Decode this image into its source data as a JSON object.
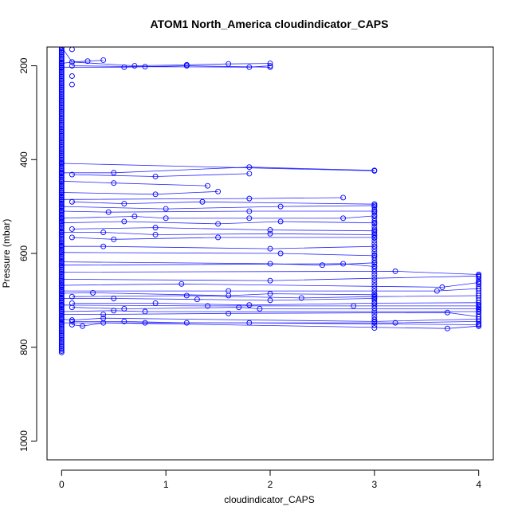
{
  "chart_data": {
    "type": "line",
    "title": "ATOM1 North_America cloudindicator_CAPS",
    "xlabel": "cloudindicator_CAPS",
    "ylabel": "Pressure (mbar)",
    "xlim": [
      -0.14,
      4.14
    ],
    "ylim": [
      1040,
      160
    ],
    "y_reversed": true,
    "xticks": [
      0,
      1,
      2,
      3,
      4
    ],
    "yticks": [
      200,
      400,
      600,
      800,
      1000
    ],
    "grid": false,
    "legend": "none",
    "series_color": "#0000ff",
    "series": [
      {
        "x": [
          0.0,
          0.1,
          0.7,
          1.2,
          1.6,
          2.0
        ],
        "y": [
          160,
          192,
          200,
          198,
          196,
          195
        ]
      },
      {
        "x": [
          0.0,
          0.1,
          0.25,
          0.4
        ],
        "y": [
          195,
          192,
          190,
          188
        ]
      },
      {
        "x": [
          0.1,
          0.8,
          1.8,
          2.0
        ],
        "y": [
          200,
          202,
          203,
          200
        ]
      },
      {
        "x": [
          0.0,
          0.6,
          1.2,
          2.0
        ],
        "y": [
          203,
          203,
          200,
          203
        ]
      },
      {
        "x": [
          0.0,
          3.0
        ],
        "y": [
          408,
          424
        ]
      },
      {
        "x": [
          0.0,
          0.5,
          1.8,
          3.0
        ],
        "y": [
          428,
          428,
          416,
          423
        ]
      },
      {
        "x": [
          0.1,
          0.9,
          1.8
        ],
        "y": [
          432,
          436,
          430
        ]
      },
      {
        "x": [
          0.0,
          0.5,
          1.4
        ],
        "y": [
          446,
          450,
          456
        ]
      },
      {
        "x": [
          0.0,
          0.9,
          1.5
        ],
        "y": [
          470,
          474,
          468
        ]
      },
      {
        "x": [
          0.0,
          1.8,
          2.7
        ],
        "y": [
          485,
          483,
          481
        ]
      },
      {
        "x": [
          0.1,
          0.6,
          1.35,
          3.0
        ],
        "y": [
          490,
          494,
          490,
          495
        ]
      },
      {
        "x": [
          0.0,
          1.0,
          2.1,
          3.0
        ],
        "y": [
          500,
          505,
          500,
          498
        ]
      },
      {
        "x": [
          0.0,
          0.45,
          1.8,
          3.0
        ],
        "y": [
          510,
          512,
          510,
          510
        ]
      },
      {
        "x": [
          0.0,
          0.7,
          1.0,
          1.8,
          2.7,
          3.0
        ],
        "y": [
          525,
          521,
          525,
          525,
          525,
          520
        ]
      },
      {
        "x": [
          0.0,
          0.6,
          1.5,
          2.1,
          3.0
        ],
        "y": [
          535,
          532,
          537,
          532,
          535
        ]
      },
      {
        "x": [
          0.1,
          0.9,
          2.0,
          3.0
        ],
        "y": [
          548,
          545,
          550,
          552
        ]
      },
      {
        "x": [
          0.0,
          0.4,
          0.9,
          2.0,
          3.0
        ],
        "y": [
          555,
          555,
          560,
          558,
          560
        ]
      },
      {
        "x": [
          0.1,
          0.5,
          1.5,
          3.0
        ],
        "y": [
          566,
          570,
          566,
          566
        ]
      },
      {
        "x": [
          0.0,
          0.4,
          2.0,
          3.0
        ],
        "y": [
          585,
          585,
          590,
          585
        ]
      },
      {
        "x": [
          0.0,
          2.1,
          3.0
        ],
        "y": [
          598,
          600,
          605
        ]
      },
      {
        "x": [
          0.0,
          2.0,
          2.5,
          3.0
        ],
        "y": [
          618,
          622,
          625,
          620
        ]
      },
      {
        "x": [
          0.0,
          2.7,
          3.0
        ],
        "y": [
          625,
          622,
          628
        ]
      },
      {
        "x": [
          0.0,
          3.2,
          4.0
        ],
        "y": [
          640,
          638,
          645
        ]
      },
      {
        "x": [
          0.0,
          2.0,
          4.0
        ],
        "y": [
          655,
          658,
          648
        ]
      },
      {
        "x": [
          0.0,
          1.15,
          3.65,
          4.0
        ],
        "y": [
          668,
          665,
          672,
          662
        ]
      },
      {
        "x": [
          0.0,
          1.6,
          3.6,
          4.0
        ],
        "y": [
          680,
          680,
          680,
          675
        ]
      },
      {
        "x": [
          0.0,
          0.3,
          1.6,
          2.0,
          3.0
        ],
        "y": [
          685,
          684,
          690,
          686,
          688
        ]
      },
      {
        "x": [
          0.1,
          1.2,
          2.3,
          3.0,
          4.0
        ],
        "y": [
          692,
          690,
          695,
          692,
          690
        ]
      },
      {
        "x": [
          0.0,
          0.5,
          1.3,
          2.0,
          3.0
        ],
        "y": [
          696,
          696,
          698,
          700,
          696
        ]
      },
      {
        "x": [
          0.1,
          0.9,
          1.8,
          3.0,
          4.0
        ],
        "y": [
          706,
          706,
          710,
          706,
          705
        ]
      },
      {
        "x": [
          0.0,
          1.4,
          2.8,
          4.0
        ],
        "y": [
          710,
          712,
          712,
          712
        ]
      },
      {
        "x": [
          0.1,
          0.6,
          1.7,
          1.9,
          4.0
        ],
        "y": [
          715,
          718,
          715,
          718,
          718
        ]
      },
      {
        "x": [
          0.0,
          0.5,
          0.8,
          4.0
        ],
        "y": [
          724,
          722,
          724,
          724
        ]
      },
      {
        "x": [
          0.0,
          0.4,
          1.6,
          3.7,
          4.0
        ],
        "y": [
          730,
          730,
          728,
          726,
          735
        ]
      },
      {
        "x": [
          0.0,
          0.1,
          0.4,
          3.0,
          4.0
        ],
        "y": [
          740,
          742,
          738,
          745,
          740
        ]
      },
      {
        "x": [
          0.1,
          0.6,
          1.2,
          3.2,
          4.0
        ],
        "y": [
          745,
          745,
          748,
          748,
          745
        ]
      },
      {
        "x": [
          0.0,
          0.8,
          1.8,
          4.0
        ],
        "y": [
          748,
          748,
          748,
          752
        ]
      },
      {
        "x": [
          0.1,
          0.2,
          0.4,
          3.7,
          4.0
        ],
        "y": [
          752,
          755,
          748,
          760,
          755
        ]
      }
    ],
    "scatter_x0": {
      "x": 0,
      "y_start": 160,
      "y_end": 812,
      "step": 3
    },
    "scatter_x3": {
      "x": 3,
      "y_start": 495,
      "y_end": 760,
      "step": 6
    },
    "scatter_x4": {
      "x": 4,
      "y_start": 645,
      "y_end": 758,
      "step": 5
    },
    "scatter_x01": [
      {
        "x": 0.1,
        "y": 222
      },
      {
        "x": 0.1,
        "y": 240
      },
      {
        "x": 0.1,
        "y": 165
      }
    ]
  }
}
